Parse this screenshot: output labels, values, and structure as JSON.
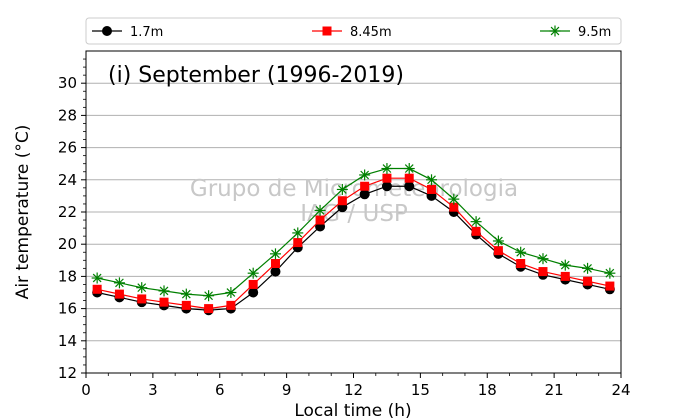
{
  "chart_data": {
    "type": "line",
    "title": "(i) September (1996-2019)",
    "xlabel": "Local time (h)",
    "ylabel": "Air temperature (°C)",
    "xlim": [
      0,
      24
    ],
    "ylim": [
      12,
      32
    ],
    "xticks": [
      "0",
      "3",
      "6",
      "9",
      "12",
      "15",
      "18",
      "21",
      "24"
    ],
    "yticks": [
      "12",
      "14",
      "16",
      "18",
      "20",
      "22",
      "24",
      "26",
      "28",
      "30"
    ],
    "grid": "horizontal",
    "legend_position": "top, outside plot",
    "watermark": [
      "Grupo de Micrometeorologia",
      "IAG / USP"
    ],
    "x": [
      0.5,
      1.5,
      2.5,
      3.5,
      4.5,
      5.5,
      6.5,
      7.5,
      8.5,
      9.5,
      10.5,
      11.5,
      12.5,
      13.5,
      14.5,
      15.5,
      16.5,
      17.5,
      18.5,
      19.5,
      20.5,
      21.5,
      22.5,
      23.5
    ],
    "series": [
      {
        "name": "1.7m",
        "color": "#000000",
        "marker": "circle",
        "values": [
          17.0,
          16.7,
          16.4,
          16.2,
          16.0,
          15.9,
          16.0,
          17.0,
          18.3,
          19.8,
          21.1,
          22.3,
          23.1,
          23.6,
          23.6,
          23.0,
          22.0,
          20.6,
          19.4,
          18.6,
          18.1,
          17.8,
          17.5,
          17.2
        ]
      },
      {
        "name": "8.45m",
        "color": "#ff0000",
        "marker": "square",
        "values": [
          17.2,
          16.9,
          16.6,
          16.4,
          16.2,
          16.0,
          16.2,
          17.5,
          18.8,
          20.1,
          21.5,
          22.7,
          23.6,
          24.1,
          24.1,
          23.4,
          22.3,
          20.8,
          19.6,
          18.8,
          18.3,
          18.0,
          17.7,
          17.4
        ]
      },
      {
        "name": "9.5m",
        "color": "#008000",
        "marker": "star",
        "values": [
          17.9,
          17.6,
          17.3,
          17.1,
          16.9,
          16.8,
          17.0,
          18.2,
          19.4,
          20.7,
          22.1,
          23.4,
          24.3,
          24.7,
          24.7,
          24.0,
          22.8,
          21.4,
          20.2,
          19.5,
          19.1,
          18.7,
          18.5,
          18.2
        ]
      }
    ]
  }
}
